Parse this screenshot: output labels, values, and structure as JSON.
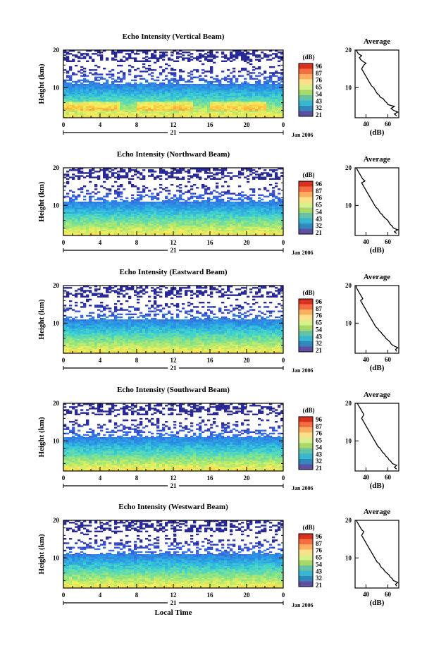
{
  "chart_data": [
    {
      "type": "heatmap",
      "title": "Echo Intensity (Vertical Beam)",
      "ylabel": "Height (km)",
      "ylim": [
        2,
        20
      ],
      "y_ticks": [
        "20",
        "10"
      ],
      "x_ticks": [
        "0",
        "4",
        "8",
        "12",
        "16",
        "20",
        "0"
      ],
      "xlim_hours": [
        0,
        24
      ],
      "day_label": "21",
      "date_label": "Jan 2006",
      "colorbar": {
        "unit": "(dB)",
        "levels": [
          "96",
          "87",
          "76",
          "65",
          "54",
          "43",
          "32",
          "21"
        ]
      },
      "profile": {
        "title": "Average",
        "xlabel": "(dB)",
        "x_ticks": [
          "40",
          "60"
        ],
        "y_ticks": [
          "20",
          "10"
        ],
        "xlim": [
          30,
          70
        ],
        "heights": [
          2.5,
          3,
          3.5,
          4,
          4.5,
          5,
          5.5,
          6,
          6.5,
          7,
          7.5,
          8,
          8.5,
          9,
          9.5,
          10,
          10.5,
          11,
          11.5,
          12,
          12.5,
          13,
          13.5,
          14,
          14.5,
          15,
          15.5,
          16,
          16.5,
          17,
          17.5,
          18,
          18.5,
          19,
          19.5,
          20
        ],
        "values": [
          68,
          66,
          69,
          65,
          63,
          66,
          60,
          59,
          57,
          56,
          53,
          52,
          50,
          49,
          48,
          47,
          45,
          44,
          43,
          42,
          41,
          40,
          39,
          38,
          37,
          36,
          37,
          38,
          40,
          37,
          35,
          34,
          36,
          33,
          32,
          31
        ]
      }
    },
    {
      "type": "heatmap",
      "title": "Echo Intensity (Northward Beam)",
      "ylabel": "Height (km)",
      "ylim": [
        2,
        20
      ],
      "y_ticks": [
        "20",
        "10"
      ],
      "x_ticks": [
        "0",
        "4",
        "8",
        "12",
        "16",
        "20",
        "0"
      ],
      "xlim_hours": [
        0,
        24
      ],
      "day_label": "21",
      "date_label": "Jan 2006",
      "colorbar": {
        "unit": "(dB)",
        "levels": [
          "96",
          "87",
          "76",
          "65",
          "54",
          "43",
          "32",
          "21"
        ]
      },
      "profile": {
        "title": "Average",
        "xlabel": "(dB)",
        "x_ticks": [
          "40",
          "60"
        ],
        "y_ticks": [
          "20",
          "10"
        ],
        "xlim": [
          30,
          70
        ],
        "heights": [
          2.5,
          3,
          3.5,
          4,
          4.5,
          5,
          5.5,
          6,
          6.5,
          7,
          7.5,
          8,
          8.5,
          9,
          9.5,
          10,
          10.5,
          11,
          11.5,
          12,
          12.5,
          13,
          13.5,
          14,
          14.5,
          15,
          15.5,
          16,
          16.5,
          17,
          17.5,
          18,
          18.5,
          19,
          19.5,
          20
        ],
        "values": [
          68,
          66,
          69,
          65,
          64,
          62,
          61,
          60,
          58,
          56,
          55,
          53,
          52,
          51,
          49,
          48,
          47,
          46,
          45,
          44,
          43,
          42,
          41,
          40,
          39,
          38,
          37,
          36,
          39,
          37,
          36,
          35,
          34,
          33,
          32,
          31
        ]
      }
    },
    {
      "type": "heatmap",
      "title": "Echo Intensity (Eastward Beam)",
      "ylabel": "Height (km)",
      "ylim": [
        2,
        20
      ],
      "y_ticks": [
        "20",
        "10"
      ],
      "x_ticks": [
        "0",
        "4",
        "8",
        "12",
        "16",
        "20",
        "0"
      ],
      "xlim_hours": [
        0,
        24
      ],
      "day_label": "21",
      "date_label": "Jan 2006",
      "colorbar": {
        "unit": "(dB)",
        "levels": [
          "96",
          "87",
          "76",
          "65",
          "54",
          "43",
          "32",
          "21"
        ]
      },
      "profile": {
        "title": "Average",
        "xlabel": "(dB)",
        "x_ticks": [
          "40",
          "60"
        ],
        "y_ticks": [
          "20",
          "10"
        ],
        "xlim": [
          30,
          70
        ],
        "heights": [
          2.5,
          3,
          3.5,
          4,
          4.5,
          5,
          5.5,
          6,
          6.5,
          7,
          7.5,
          8,
          8.5,
          9,
          9.5,
          10,
          10.5,
          11,
          11.5,
          12,
          12.5,
          13,
          13.5,
          14,
          14.5,
          15,
          15.5,
          16,
          16.5,
          17,
          17.5,
          18,
          18.5,
          19,
          19.5,
          20
        ],
        "values": [
          68,
          67,
          69,
          65,
          63,
          62,
          60,
          58,
          57,
          55,
          54,
          52,
          51,
          49,
          48,
          47,
          46,
          45,
          44,
          43,
          42,
          41,
          40,
          39,
          38,
          37,
          36,
          35,
          37,
          36,
          35,
          34,
          33,
          32,
          31,
          31
        ]
      }
    },
    {
      "type": "heatmap",
      "title": "Echo Intensity (Southward Beam)",
      "ylabel": "Height (km)",
      "ylim": [
        2,
        20
      ],
      "y_ticks": [
        "20",
        "10"
      ],
      "x_ticks": [
        "0",
        "4",
        "8",
        "12",
        "16",
        "20",
        "0"
      ],
      "xlim_hours": [
        0,
        24
      ],
      "day_label": "21",
      "date_label": "Jan 2006",
      "colorbar": {
        "unit": "(dB)",
        "levels": [
          "96",
          "87",
          "76",
          "65",
          "54",
          "43",
          "32",
          "21"
        ]
      },
      "profile": {
        "title": "Average",
        "xlabel": "(dB)",
        "x_ticks": [
          "40",
          "60"
        ],
        "y_ticks": [
          "20",
          "10"
        ],
        "xlim": [
          30,
          70
        ],
        "heights": [
          2.5,
          3,
          3.5,
          4,
          4.5,
          5,
          5.5,
          6,
          6.5,
          7,
          7.5,
          8,
          8.5,
          9,
          9.5,
          10,
          10.5,
          11,
          11.5,
          12,
          12.5,
          13,
          13.5,
          14,
          14.5,
          15,
          15.5,
          16,
          16.5,
          17,
          17.5,
          18,
          18.5,
          19,
          19.5,
          20
        ],
        "values": [
          68,
          66,
          68,
          64,
          63,
          61,
          60,
          58,
          57,
          55,
          54,
          53,
          51,
          50,
          49,
          48,
          47,
          46,
          45,
          44,
          43,
          42,
          41,
          40,
          39,
          38,
          37,
          36,
          37,
          38,
          37,
          36,
          35,
          34,
          33,
          32
        ]
      }
    },
    {
      "type": "heatmap",
      "title": "Echo Intensity (Westward Beam)",
      "ylabel": "Height (km)",
      "ylim": [
        2,
        20
      ],
      "y_ticks": [
        "20",
        "10"
      ],
      "x_ticks": [
        "0",
        "4",
        "8",
        "12",
        "16",
        "20",
        "0"
      ],
      "xlim_hours": [
        0,
        24
      ],
      "day_label": "21",
      "date_label": "Jan 2006",
      "xlabel": "Local Time",
      "colorbar": {
        "unit": "(dB)",
        "levels": [
          "96",
          "87",
          "76",
          "65",
          "54",
          "43",
          "32",
          "21"
        ]
      },
      "profile": {
        "title": "Average",
        "xlabel": "(dB)",
        "x_ticks": [
          "40",
          "60"
        ],
        "y_ticks": [
          "20",
          "10"
        ],
        "xlim": [
          30,
          70
        ],
        "heights": [
          2.5,
          3,
          3.5,
          4,
          4.5,
          5,
          5.5,
          6,
          6.5,
          7,
          7.5,
          8,
          8.5,
          9,
          9.5,
          10,
          10.5,
          11,
          11.5,
          12,
          12.5,
          13,
          13.5,
          14,
          14.5,
          15,
          15.5,
          16,
          16.5,
          17,
          17.5,
          18,
          18.5,
          19,
          19.5,
          20
        ],
        "values": [
          68,
          67,
          69,
          65,
          64,
          62,
          61,
          59,
          57,
          56,
          54,
          53,
          52,
          50,
          49,
          48,
          47,
          46,
          45,
          44,
          43,
          42,
          41,
          40,
          39,
          38,
          37,
          36,
          37,
          38,
          36,
          35,
          34,
          33,
          32,
          31
        ]
      }
    }
  ]
}
